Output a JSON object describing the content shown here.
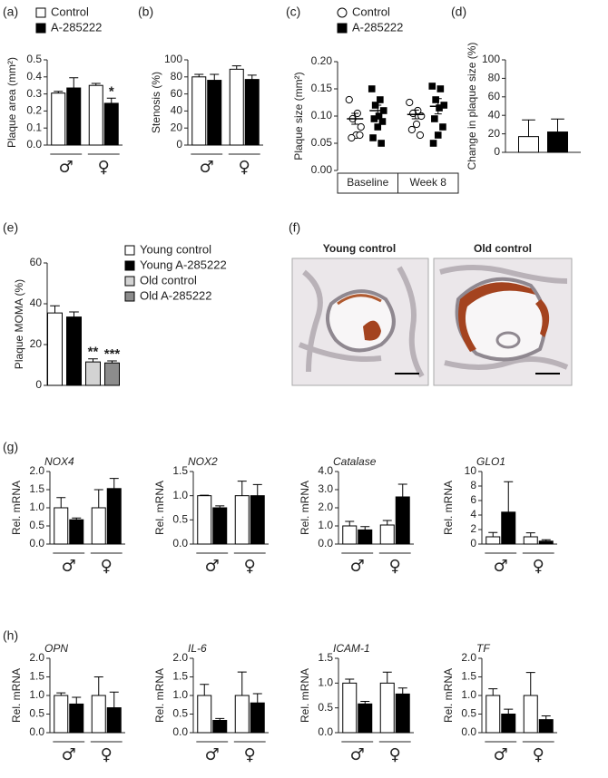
{
  "chart_data": [
    {
      "type": "bar",
      "panel": "(a)",
      "ylabel": "Plaque area (mm²)",
      "categories": [
        "♂",
        "♀"
      ],
      "legend": "top",
      "series": [
        {
          "name": "Control",
          "color": "#ffffff",
          "values": [
            0.305,
            0.35
          ],
          "errors": [
            0.01,
            0.012
          ]
        },
        {
          "name": "A-285222",
          "color": "#000000",
          "values": [
            0.335,
            0.245
          ],
          "errors": [
            0.06,
            0.03
          ],
          "significance": [
            null,
            "*"
          ]
        }
      ],
      "ylim": [
        0,
        0.5
      ],
      "yticks": [
        {
          "value": 0,
          "label": "0.0"
        },
        0.1,
        0.2,
        0.3,
        0.4,
        0.5
      ]
    },
    {
      "type": "bar",
      "panel": "(b)",
      "ylabel": "Stenosis (%)",
      "categories": [
        "♂",
        "♀"
      ],
      "series": [
        {
          "color": "#ffffff",
          "values": [
            80,
            89
          ],
          "errors": [
            3,
            4
          ]
        },
        {
          "color": "#000000",
          "values": [
            76,
            77
          ],
          "errors": [
            7,
            5
          ]
        }
      ],
      "ylim": [
        0,
        100
      ],
      "yticks": [
        0,
        20,
        40,
        60,
        80,
        100
      ]
    },
    {
      "type": "scatter",
      "panel": "(c)",
      "ylabel": "Plaque size (mm²)",
      "categories": [
        "Baseline",
        "Week 8"
      ],
      "legend": "top",
      "series": [
        {
          "name": "Control",
          "marker": "circle",
          "color": "#ffffff",
          "values": [
            [
              0.13,
              0.105,
              0.095,
              0.08,
              0.065,
              0.06,
              0.065
            ],
            [
              0.125,
              0.11,
              0.105,
              0.1,
              0.085,
              0.075,
              0.065
            ]
          ],
          "means": [
            0.095,
            0.103
          ],
          "errors": [
            0.01,
            0.008
          ]
        },
        {
          "name": "A-285222",
          "marker": "square",
          "color": "#000000",
          "values": [
            [
              0.15,
              0.13,
              0.12,
              0.11,
              0.1,
              0.095,
              0.09,
              0.08,
              0.06,
              0.05
            ],
            [
              0.155,
              0.15,
              0.13,
              0.12,
              0.115,
              0.095,
              0.08,
              0.065,
              0.05
            ]
          ],
          "means": [
            0.11,
            0.118
          ],
          "errors": [
            0.01,
            0.014
          ]
        }
      ],
      "ylim": [
        0,
        0.2
      ],
      "yticks": [
        {
          "value": 0,
          "label": "0.00"
        },
        0.05,
        {
          "value": 0.1,
          "label": "0.10"
        },
        0.15,
        {
          "value": 0.2,
          "label": "0.20"
        }
      ]
    },
    {
      "type": "bar",
      "panel": "(d)",
      "ylabel": "Change in plaque size (%)",
      "categories": [
        null
      ],
      "series": [
        {
          "color": "#ffffff",
          "values": [
            17
          ],
          "errors": [
            18
          ]
        },
        {
          "color": "#000000",
          "values": [
            22
          ],
          "errors": [
            14
          ]
        }
      ],
      "ylim": [
        0,
        100
      ],
      "yticks": [
        0,
        20,
        40,
        60,
        80,
        100
      ]
    },
    {
      "type": "bar",
      "panel": "(e)",
      "ylabel": "Plaque MOMA (%)",
      "categories": [
        null
      ],
      "legend": "right",
      "series": [
        {
          "name": "Young control",
          "color": "#ffffff",
          "values": [
            35.5
          ],
          "errors": [
            3.5
          ]
        },
        {
          "name": "Young A-285222",
          "color": "#000000",
          "values": [
            33.5
          ],
          "errors": [
            2.5
          ]
        },
        {
          "name": "Old control",
          "color": "#d3d3d3",
          "values": [
            11.5
          ],
          "errors": [
            1.5
          ],
          "significance": [
            "**"
          ]
        },
        {
          "name": "Old A-285222",
          "color": "#8c8c8c",
          "values": [
            11
          ],
          "errors": [
            1
          ],
          "significance": [
            "***"
          ]
        }
      ],
      "ylim": [
        0,
        60
      ],
      "yticks": [
        0,
        20,
        40,
        60
      ]
    },
    {
      "type": "bar",
      "panel": "(g)",
      "title": "NOX4",
      "ylabel": "Rel. mRNA",
      "categories": [
        "♂",
        "♀"
      ],
      "series": [
        {
          "color": "#ffffff",
          "values": [
            1.0,
            1.0
          ],
          "errors": [
            0.28,
            0.5
          ]
        },
        {
          "color": "#000000",
          "values": [
            0.67,
            1.53
          ],
          "errors": [
            0.05,
            0.28
          ]
        }
      ],
      "ylim": [
        0,
        2
      ],
      "yticks": [
        {
          "value": 0,
          "label": "0.0"
        },
        0.5,
        {
          "value": 1,
          "label": "1.0"
        },
        1.5,
        {
          "value": 2,
          "label": "2.0"
        }
      ]
    },
    {
      "type": "bar",
      "title": "NOX2",
      "ylabel": "Rel. mRNA",
      "categories": [
        "♂",
        "♀"
      ],
      "series": [
        {
          "color": "#ffffff",
          "values": [
            1.0,
            1.0
          ],
          "errors": [
            0.01,
            0.3
          ]
        },
        {
          "color": "#000000",
          "values": [
            0.75,
            1.0
          ],
          "errors": [
            0.04,
            0.23
          ]
        }
      ],
      "ylim": [
        0,
        1.5
      ],
      "yticks": [
        {
          "value": 0,
          "label": "0.0"
        },
        0.5,
        {
          "value": 1,
          "label": "1.0"
        },
        1.5
      ]
    },
    {
      "type": "bar",
      "title": "Catalase",
      "ylabel": "Rel. mRNA",
      "categories": [
        "♂",
        "♀"
      ],
      "series": [
        {
          "color": "#ffffff",
          "values": [
            1.0,
            1.05
          ],
          "errors": [
            0.25,
            0.25
          ]
        },
        {
          "color": "#000000",
          "values": [
            0.78,
            2.6
          ],
          "errors": [
            0.18,
            0.7
          ]
        }
      ],
      "ylim": [
        0,
        4
      ],
      "yticks": [
        {
          "value": 0,
          "label": "0.0"
        },
        {
          "value": 1,
          "label": "1.0"
        },
        {
          "value": 2,
          "label": "2.0"
        },
        {
          "value": 3,
          "label": "3.0"
        },
        {
          "value": 4,
          "label": "4.0"
        }
      ]
    },
    {
      "type": "bar",
      "title": "GLO1",
      "ylabel": "Rel. mRNA",
      "categories": [
        "♂",
        "♀"
      ],
      "series": [
        {
          "color": "#ffffff",
          "values": [
            1.0,
            1.0
          ],
          "errors": [
            0.6,
            0.55
          ]
        },
        {
          "color": "#000000",
          "values": [
            4.4,
            0.4
          ],
          "errors": [
            4.2,
            0.2
          ]
        }
      ],
      "ylim": [
        0,
        10
      ],
      "yticks": [
        0,
        2,
        4,
        6,
        8,
        10
      ]
    },
    {
      "type": "bar",
      "panel": "(h)",
      "title": "OPN",
      "ylabel": "Rel. mRNA",
      "categories": [
        "♂",
        "♀"
      ],
      "series": [
        {
          "color": "#ffffff",
          "values": [
            1.0,
            1.0
          ],
          "errors": [
            0.07,
            0.5
          ]
        },
        {
          "color": "#000000",
          "values": [
            0.77,
            0.67
          ],
          "errors": [
            0.18,
            0.42
          ]
        }
      ],
      "ylim": [
        0,
        2
      ],
      "yticks": [
        {
          "value": 0,
          "label": "0.0"
        },
        0.5,
        {
          "value": 1,
          "label": "1.0"
        },
        1.5,
        {
          "value": 2,
          "label": "2.0"
        }
      ]
    },
    {
      "type": "bar",
      "title": "IL-6",
      "ylabel": "Rel. mRNA",
      "categories": [
        "♂",
        "♀"
      ],
      "series": [
        {
          "color": "#ffffff",
          "values": [
            1.0,
            1.0
          ],
          "errors": [
            0.3,
            0.63
          ]
        },
        {
          "color": "#000000",
          "values": [
            0.33,
            0.8
          ],
          "errors": [
            0.05,
            0.25
          ]
        }
      ],
      "ylim": [
        0,
        2
      ],
      "yticks": [
        {
          "value": 0,
          "label": "0.0"
        },
        0.5,
        {
          "value": 1,
          "label": "1.0"
        },
        1.5,
        {
          "value": 2,
          "label": "2.0"
        }
      ]
    },
    {
      "type": "bar",
      "title": "ICAM-1",
      "ylabel": "Rel. mRNA",
      "categories": [
        "♂",
        "♀"
      ],
      "series": [
        {
          "color": "#ffffff",
          "values": [
            1.0,
            1.0
          ],
          "errors": [
            0.08,
            0.22
          ]
        },
        {
          "color": "#000000",
          "values": [
            0.58,
            0.78
          ],
          "errors": [
            0.05,
            0.12
          ]
        }
      ],
      "ylim": [
        0,
        1.5
      ],
      "yticks": [
        {
          "value": 0,
          "label": "0.0"
        },
        0.5,
        {
          "value": 1,
          "label": "1.0"
        },
        1.5
      ]
    },
    {
      "type": "bar",
      "title": "TF",
      "ylabel": "Rel. mRNA",
      "categories": [
        "♂",
        "♀"
      ],
      "series": [
        {
          "color": "#ffffff",
          "values": [
            1.0,
            1.0
          ],
          "errors": [
            0.18,
            0.62
          ]
        },
        {
          "color": "#000000",
          "values": [
            0.5,
            0.35
          ],
          "errors": [
            0.13,
            0.1
          ]
        }
      ],
      "ylim": [
        0,
        2
      ],
      "yticks": [
        {
          "value": 0,
          "label": "0.0"
        },
        0.5,
        {
          "value": 1,
          "label": "1.0"
        },
        1.5,
        {
          "value": 2,
          "label": "2.0"
        }
      ]
    }
  ],
  "micrographs": {
    "panel": "(f)",
    "labels": [
      "Young control",
      "Old control"
    ]
  }
}
